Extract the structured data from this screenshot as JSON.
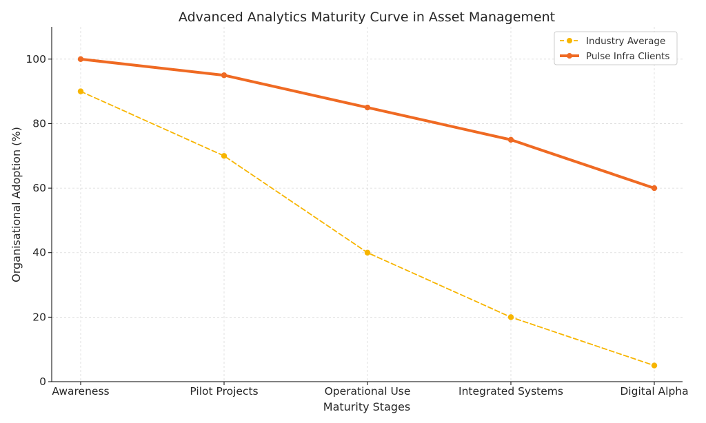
{
  "chart_data": {
    "type": "line",
    "title": "Advanced Analytics Maturity Curve in Asset Management",
    "xlabel": "Maturity Stages",
    "ylabel": "Organisational Adoption (%)",
    "categories": [
      "Awareness",
      "Pilot Projects",
      "Operational Use",
      "Integrated Systems",
      "Digital Alpha"
    ],
    "ylim": [
      0,
      110
    ],
    "yticks": [
      0,
      20,
      40,
      60,
      80,
      100
    ],
    "grid": true,
    "legend_position": "top-right",
    "series": [
      {
        "name": "Industry Average",
        "values": [
          90,
          70,
          40,
          20,
          5
        ],
        "color": "#f7b500",
        "style": "dashed"
      },
      {
        "name": "Pulse Infra Clients",
        "values": [
          100,
          95,
          85,
          75,
          60
        ],
        "color": "#ef6a23",
        "style": "solid"
      }
    ]
  }
}
